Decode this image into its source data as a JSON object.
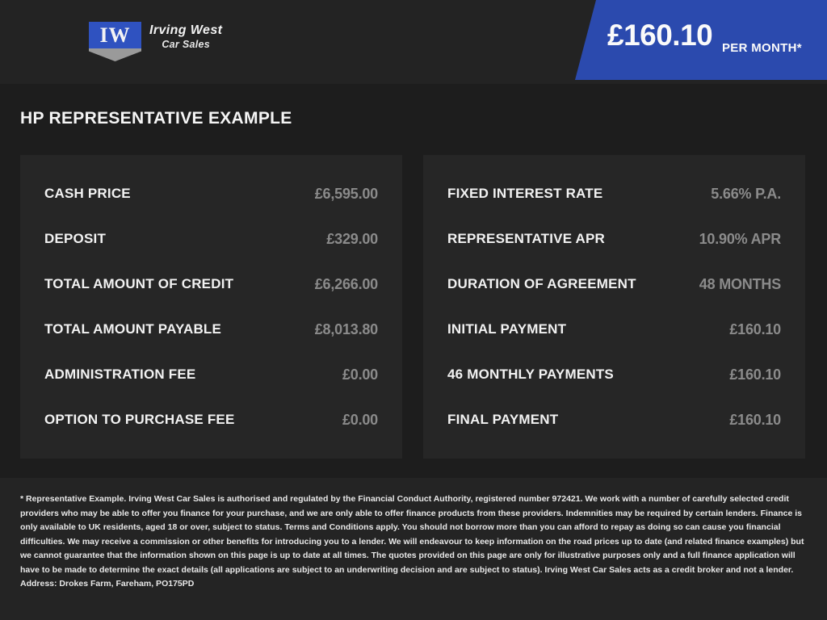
{
  "header": {
    "brand": {
      "initials": "IW",
      "name": "Irving West",
      "tagline": "Car Sales"
    },
    "price_banner": {
      "amount": "£160.10",
      "period": "PER MONTH*"
    }
  },
  "page_title": "HP REPRESENTATIVE EXAMPLE",
  "finance": {
    "left": {
      "rows": [
        {
          "label": "CASH PRICE",
          "value": "£6,595.00"
        },
        {
          "label": "DEPOSIT",
          "value": "£329.00"
        },
        {
          "label": "TOTAL AMOUNT OF CREDIT",
          "value": "£6,266.00"
        },
        {
          "label": "TOTAL AMOUNT PAYABLE",
          "value": "£8,013.80"
        },
        {
          "label": "ADMINISTRATION FEE",
          "value": "£0.00"
        },
        {
          "label": "OPTION TO PURCHASE FEE",
          "value": "£0.00"
        }
      ]
    },
    "right": {
      "rows": [
        {
          "label": "FIXED INTEREST RATE",
          "value": "5.66% P.A."
        },
        {
          "label": "REPRESENTATIVE APR",
          "value": "10.90% APR"
        },
        {
          "label": "DURATION OF AGREEMENT",
          "value": "48 MONTHS"
        },
        {
          "label": "INITIAL PAYMENT",
          "value": "£160.10"
        },
        {
          "label": "46 MONTHLY PAYMENTS",
          "value": "£160.10"
        },
        {
          "label": "FINAL PAYMENT",
          "value": "£160.10"
        }
      ]
    }
  },
  "footer": {
    "disclaimer": "* Representative Example. Irving West Car Sales  is authorised and regulated by the Financial Conduct Authority, registered number 972421. We work with a number of carefully selected credit providers who may be able to offer you finance for your purchase, and we are only able to offer finance products from these providers. Indemnities may be required by certain lenders. Finance is only available to UK residents, aged 18 or over, subject to status. Terms and Conditions apply. You should not borrow more than you can afford to repay as doing so can cause you financial difficulties. We may receive a commission or other benefits for introducing you to a lender. We will endeavour to keep information on the road prices up to date (and related finance examples) but we cannot guarantee that the information shown on this page is up to date at all times. The quotes provided on this page are only for illustrative purposes only and a full finance application will have to be made to determine the exact details (all applications are subject to an underwriting decision and are subject to status). Irving West Car Sales  acts as a credit broker and not a lender. Address: Drokes Farm, Fareham, PO175PD"
  },
  "colors": {
    "accent_blue": "#2b4aae",
    "badge_blue": "#2f52c0",
    "badge_gray": "#9a9a9a",
    "value_gray": "#8b8b8b",
    "background_dark": "#1d1d1d",
    "panel_dark": "#262626"
  }
}
